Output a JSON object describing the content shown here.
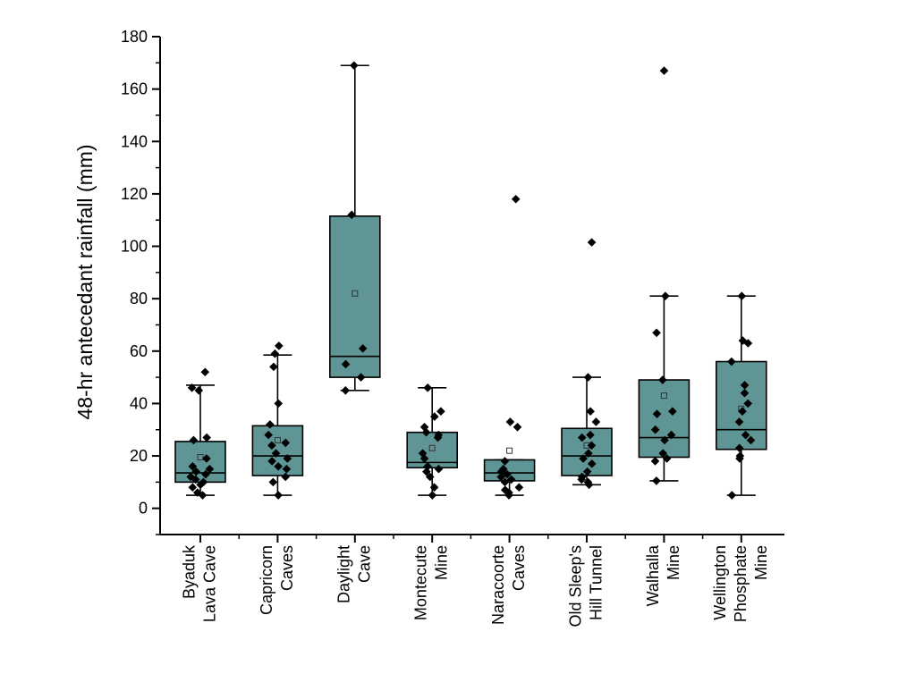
{
  "chart_data": {
    "type": "box",
    "ylabel": "48-hr antecedant rainfall (mm)",
    "ylim": [
      -10,
      180
    ],
    "yticks": [
      0,
      20,
      40,
      60,
      80,
      100,
      120,
      140,
      160,
      180
    ],
    "colors": {
      "box_fill": "#5f9595",
      "point": "#000000",
      "axis": "#000000"
    },
    "categories": [
      {
        "label_lines": [
          "Byaduk",
          "Lava Cave"
        ],
        "box": {
          "q1": 10,
          "median": 13.5,
          "q3": 25.5,
          "mean": 19.5,
          "whisker_low": 5,
          "whisker_high": 47
        },
        "points": [
          52,
          46,
          45,
          27,
          26,
          19,
          16,
          15,
          14,
          13,
          12,
          11,
          10,
          9,
          8,
          6,
          5
        ]
      },
      {
        "label_lines": [
          "Capricorn",
          "Caves"
        ],
        "box": {
          "q1": 12.5,
          "median": 20,
          "q3": 31.5,
          "mean": 26,
          "whisker_low": 5,
          "whisker_high": 58.5
        },
        "points": [
          62,
          59,
          54,
          40,
          32,
          28,
          25,
          24,
          21,
          19,
          18,
          16,
          15,
          12,
          10,
          5
        ]
      },
      {
        "label_lines": [
          "Daylight",
          "Cave"
        ],
        "box": {
          "q1": 50,
          "median": 58,
          "q3": 111.5,
          "mean": 82,
          "whisker_low": 45,
          "whisker_high": 169
        },
        "points": [
          169,
          112,
          61,
          55,
          50,
          45
        ]
      },
      {
        "label_lines": [
          "Montecute",
          "Mine"
        ],
        "box": {
          "q1": 15.5,
          "median": 17.5,
          "q3": 29,
          "mean": 23,
          "whisker_low": 5,
          "whisker_high": 46
        },
        "points": [
          46,
          37,
          35,
          31,
          29,
          28,
          27,
          21,
          19,
          16,
          15,
          14,
          12,
          8,
          5
        ]
      },
      {
        "label_lines": [
          "Naracoorte",
          "Caves"
        ],
        "box": {
          "q1": 10.5,
          "median": 13.5,
          "q3": 18.5,
          "mean": 22,
          "whisker_low": 5,
          "whisker_high": 18.5
        },
        "points": [
          118,
          33,
          31,
          18,
          15,
          14,
          13,
          12,
          11,
          10,
          8,
          7,
          6,
          5
        ]
      },
      {
        "label_lines": [
          "Old Sleep's",
          "Hill Tunnel"
        ],
        "box": {
          "q1": 12.5,
          "median": 20,
          "q3": 30.5,
          "mean": 24,
          "whisker_low": 9,
          "whisker_high": 50
        },
        "points": [
          101.5,
          50,
          37,
          33,
          28,
          27,
          24,
          21,
          19,
          17,
          14,
          12,
          11,
          10,
          9
        ]
      },
      {
        "label_lines": [
          "Walhalla",
          "Mine"
        ],
        "box": {
          "q1": 19.5,
          "median": 27,
          "q3": 49,
          "mean": 43,
          "whisker_low": 10.5,
          "whisker_high": 81
        },
        "points": [
          167,
          81,
          67,
          49,
          37,
          36,
          30,
          28,
          26,
          21,
          19,
          18,
          10.5
        ]
      },
      {
        "label_lines": [
          "Wellington",
          "Phosphate",
          "Mine"
        ],
        "box": {
          "q1": 22.5,
          "median": 30,
          "q3": 56,
          "mean": 38,
          "whisker_low": 5,
          "whisker_high": 81
        },
        "points": [
          81,
          64,
          63,
          56,
          47,
          44,
          40,
          37,
          33,
          28,
          26,
          23,
          20,
          19,
          5
        ]
      }
    ]
  }
}
